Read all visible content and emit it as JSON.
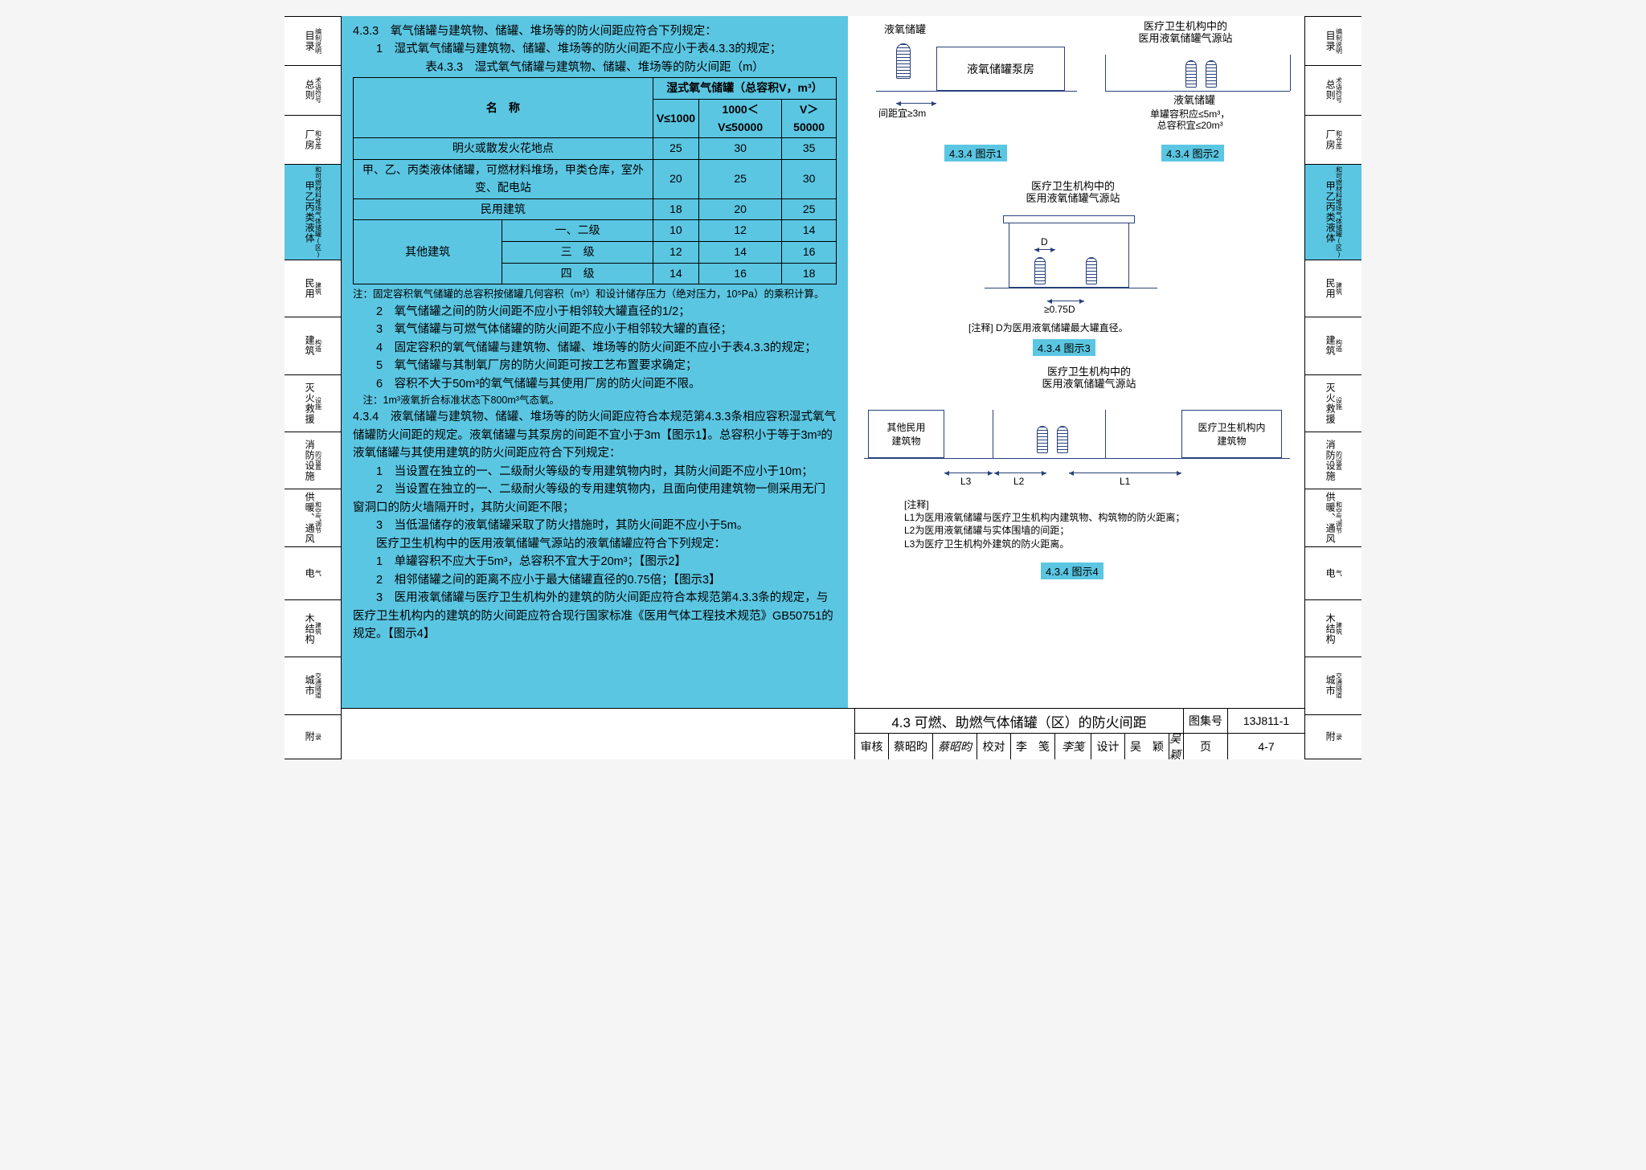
{
  "nav": [
    {
      "id": "a",
      "big": "目录",
      "small": "编制说明"
    },
    {
      "id": "b",
      "big": "总则",
      "small": "术语符号"
    },
    {
      "id": "c",
      "big": "厂房",
      "small": "和仓库"
    },
    {
      "id": "d",
      "big": "甲乙丙类液体",
      "small": "和可燃材料堆场气体储罐(区)",
      "active": true
    },
    {
      "id": "e",
      "big": "民用",
      "small": "建筑"
    },
    {
      "id": "f",
      "big": "建筑",
      "small": "构造"
    },
    {
      "id": "g",
      "big": "灭火救援",
      "small": "设施"
    },
    {
      "id": "h",
      "big": "消防设施",
      "small": "的设置"
    },
    {
      "id": "i",
      "big": "供暖、通风",
      "small": "和空气调节"
    },
    {
      "id": "j",
      "big": "电",
      "small": "气"
    },
    {
      "id": "k",
      "big": "木结构",
      "small": "建筑"
    },
    {
      "id": "l",
      "big": "城市",
      "small": "交通隧道"
    },
    {
      "id": "m",
      "big": "附",
      "small": "录"
    }
  ],
  "text": {
    "p433": "4.3.3　氧气储罐与建筑物、储罐、堆场等的防火间距应符合下列规定：",
    "p433_1": "1　湿式氧气储罐与建筑物、储罐、堆场等的防火间距不应小于表4.3.3的规定；",
    "tbl_title": "表4.3.3　湿式氧气储罐与建筑物、储罐、堆场等的防火间距（m）",
    "tbl_name_hdr": "名　称",
    "tbl_cap_hdr": "湿式氧气储罐（总容积V，m³）",
    "col1": "V≤1000",
    "col2": "1000＜V≤50000",
    "col3": "V＞50000",
    "r1": "明火或散发火花地点",
    "r1v": [
      "25",
      "30",
      "35"
    ],
    "r2": "甲、乙、丙类液体储罐，可燃材料堆场，甲类仓库，室外变、配电站",
    "r2v": [
      "20",
      "25",
      "30"
    ],
    "r3": "民用建筑",
    "r3v": [
      "18",
      "20",
      "25"
    ],
    "other": "其他建筑",
    "r4": "一、二级",
    "r4v": [
      "10",
      "12",
      "14"
    ],
    "r5": "三　级",
    "r5v": [
      "12",
      "14",
      "16"
    ],
    "r6": "四　级",
    "r6v": [
      "14",
      "16",
      "18"
    ],
    "tnote": "注：固定容积氧气储罐的总容积按储罐几何容积（m³）和设计储存压力（绝对压力，10⁵Pa）的乘积计算。",
    "p2": "2　氧气储罐之间的防火间距不应小于相邻较大罐直径的1/2；",
    "p3": "3　氧气储罐与可燃气体储罐的防火间距不应小于相邻较大罐的直径；",
    "p4": "4　固定容积的氧气储罐与建筑物、储罐、堆场等的防火间距不应小于表4.3.3的规定；",
    "p5": "5　氧气储罐与其制氧厂房的防火间距可按工艺布置要求确定；",
    "p6": "6　容积不大于50m³的氧气储罐与其使用厂房的防火间距不限。",
    "note800": "注：1m³液氧折合标准状态下800m³气态氧。",
    "p434": "4.3.4　液氧储罐与建筑物、储罐、堆场等的防火间距应符合本规范第4.3.3条相应容积湿式氧气储罐防火间距的规定。液氧储罐与其泵房的间距不宜小于3m【图示1】。总容积小于等于3m³的液氧储罐与其使用建筑的防火间距应符合下列规定：",
    "p434_1": "1　当设置在独立的一、二级耐火等级的专用建筑物内时，其防火间距不应小于10m；",
    "p434_2": "2　当设置在独立的一、二级耐火等级的专用建筑物内，且面向使用建筑物一侧采用无门窗洞口的防火墙隔开时，其防火间距不限；",
    "p434_3": "3　当低温储存的液氧储罐采取了防火措施时，其防火间距不应小于5m。",
    "p434_med": "医疗卫生机构中的医用液氧储罐气源站的液氧储罐应符合下列规定：",
    "p434_m1": "1　单罐容积不应大于5m³，总容积不宜大于20m³；【图示2】",
    "p434_m2": "2　相邻储罐之间的距离不应小于最大储罐直径的0.75倍；【图示3】",
    "p434_m3": "3　医用液氧储罐与医疗卫生机构外的建筑的防火间距应符合本规范第4.3.3条的规定，与医疗卫生机构内的建筑的防火间距应符合现行国家标准《医用气体工程技术规范》GB50751的规定。【图示4】"
  },
  "diag": {
    "d1_t1": "液氧储罐",
    "d1_bldg": "液氧储罐泵房",
    "d1_dim": "间距宜≥3m",
    "d1_cap": "4.3.4 图示1",
    "d2_t1": "医疗卫生机构中的\n医用液氧储罐气源站",
    "d2_tank": "液氧储罐",
    "d2_note": "单罐容积应≤5m³，\n总容积宜≤20m³",
    "d2_cap": "4.3.4 图示2",
    "d3_t": "医疗卫生机构中的\n医用液氧储罐气源站",
    "d3_D": "D",
    "d3_dim": "≥0.75D",
    "d3_note": "[注释] D为医用液氧储罐最大罐直径。",
    "d3_cap": "4.3.4 图示3",
    "d4_t": "医疗卫生机构中的\n医用液氧储罐气源站",
    "d4_b1": "其他民用\n建筑物",
    "d4_b2": "医疗卫生机构内\n建筑物",
    "d4_L1": "L1",
    "d4_L2": "L2",
    "d4_L3": "L3",
    "d4_notes": "[注释]\nL1为医用液氧储罐与医疗卫生机构内建筑物、构筑物的防火距离；\nL2为医用液氧储罐与实体围墙的间距；\nL3为医疗卫生机构外建筑的防火距离。",
    "d4_cap": "4.3.4 图示4"
  },
  "tblock": {
    "title": "4.3 可燃、助燃气体储罐（区）的防火间距",
    "setno_l": "图集号",
    "setno": "13J811-1",
    "chk_l": "审核",
    "chk": "蔡昭昀",
    "proof_l": "校对",
    "proof": "李　笺",
    "des_l": "设计",
    "des": "吴　颖",
    "page_l": "页",
    "page": "4-7"
  },
  "colors": {
    "hl": "#5bc6e2",
    "ink": "#27417a"
  }
}
